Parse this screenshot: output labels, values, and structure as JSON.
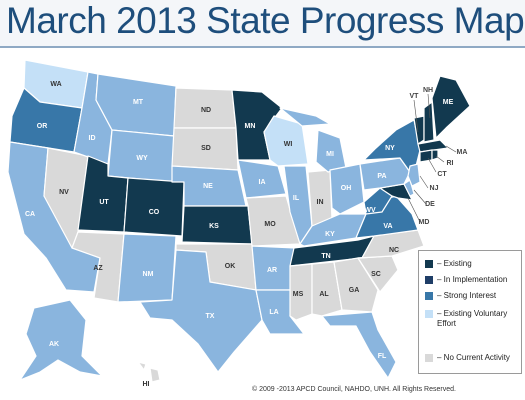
{
  "title": "March 2013 State Progress Map",
  "colors": {
    "existing": "#12394f",
    "implementation": "#1f3e67",
    "strong": "#3877a8",
    "voluntary": "#c4e0f7",
    "none": "#d9d9d9",
    "interest_light": "#8ab5de"
  },
  "legend": [
    {
      "label": "– Existing",
      "color": "#12394f"
    },
    {
      "label": "– In Implementation",
      "color": "#1f3e67"
    },
    {
      "label": "– Strong Interest",
      "color": "#3877a8"
    },
    {
      "label": "– Existing Voluntary Effort",
      "color": "#c4e0f7"
    },
    {
      "label": "– No Current Activity",
      "color": "#d9d9d9"
    }
  ],
  "states": {
    "WA": "WA",
    "OR": "OR",
    "CA": "CA",
    "ID": "ID",
    "NV": "NV",
    "MT": "MT",
    "WY": "WY",
    "UT": "UT",
    "AZ": "AZ",
    "CO": "CO",
    "NM": "NM",
    "ND": "ND",
    "SD": "SD",
    "NE": "NE",
    "KS": "KS",
    "OK": "OK",
    "TX": "TX",
    "MN": "MN",
    "IA": "IA",
    "MO": "MO",
    "AR": "AR",
    "LA": "LA",
    "WI": "WI",
    "IL": "IL",
    "MS": "MS",
    "MI": "MI",
    "IN": "IN",
    "KY": "KY",
    "TN": "TN",
    "AL": "AL",
    "OH": "OH",
    "GA": "GA",
    "FL": "FL",
    "SC": "SC",
    "NC": "NC",
    "VA": "VA",
    "WV": "WV",
    "PA": "PA",
    "NY": "NY",
    "ME": "ME",
    "VT": "VT",
    "NH": "NH",
    "MA": "MA",
    "RI": "RI",
    "CT": "CT",
    "NJ": "NJ",
    "DE": "DE",
    "MD": "MD",
    "AK": "AK",
    "HI": "HI"
  },
  "copyright": "© 2009 -2013 APCD Council, NAHDO, UNH. All Rights Reserved."
}
